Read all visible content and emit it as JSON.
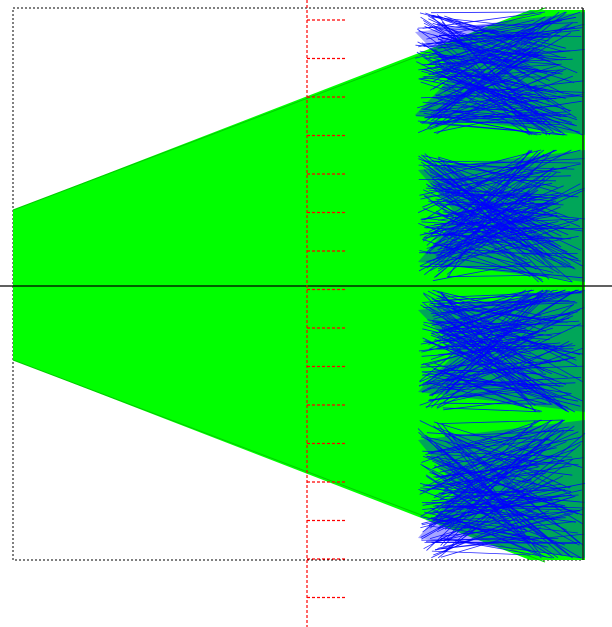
{
  "view": {
    "kind": "ray-trace-view",
    "background": "#ffffff"
  },
  "colors": {
    "beam": "#00ff00",
    "beam_edge": "#00dd00",
    "focus_rays": "#0000ff",
    "scale": "#ff0000",
    "frame": "#000000",
    "axis": "#000000"
  },
  "scale": {
    "tick_count": 16,
    "style": "dashed"
  },
  "focus_rays": {
    "lobe_count": 4
  }
}
